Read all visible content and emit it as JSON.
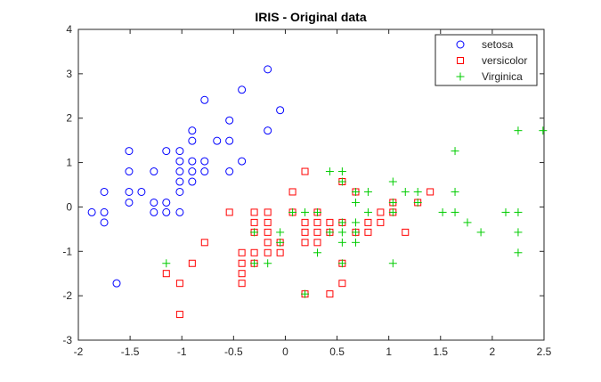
{
  "chart_data": {
    "type": "scatter",
    "title": "IRIS - Original data",
    "xlabel": "",
    "ylabel": "",
    "xlim": [
      -2,
      2.5
    ],
    "ylim": [
      -3,
      4
    ],
    "xticks": [
      -2,
      -1.5,
      -1,
      -0.5,
      0,
      0.5,
      1,
      1.5,
      2,
      2.5
    ],
    "xtick_labels": [
      "-2",
      "-1.5",
      "-1",
      "-0.5",
      "0",
      "0.5",
      "1",
      "1.5",
      "2",
      "2.5"
    ],
    "yticks": [
      -3,
      -2,
      -1,
      0,
      1,
      2,
      3,
      4
    ],
    "ytick_labels": [
      "-3",
      "-2",
      "-1",
      "0",
      "1",
      "2",
      "3",
      "4"
    ],
    "grid": false,
    "legend_position": "top-right",
    "series": [
      {
        "name": "setosa",
        "marker": "circle",
        "color": "#0000ff",
        "points": [
          [
            -1.87,
            -0.12
          ],
          [
            -1.75,
            0.34
          ],
          [
            -1.75,
            -0.12
          ],
          [
            -1.75,
            -0.35
          ],
          [
            -1.63,
            -1.72
          ],
          [
            -1.51,
            1.26
          ],
          [
            -1.51,
            0.8
          ],
          [
            -1.51,
            0.34
          ],
          [
            -1.51,
            0.1
          ],
          [
            -1.39,
            0.34
          ],
          [
            -1.27,
            0.8
          ],
          [
            -1.27,
            0.1
          ],
          [
            -1.27,
            -0.12
          ],
          [
            -1.15,
            1.26
          ],
          [
            -1.15,
            0.1
          ],
          [
            -1.15,
            -0.12
          ],
          [
            -1.02,
            1.26
          ],
          [
            -1.02,
            1.03
          ],
          [
            -1.02,
            0.8
          ],
          [
            -1.02,
            0.57
          ],
          [
            -1.02,
            0.34
          ],
          [
            -1.02,
            -0.12
          ],
          [
            -0.9,
            1.72
          ],
          [
            -0.9,
            1.49
          ],
          [
            -0.9,
            1.03
          ],
          [
            -0.9,
            0.8
          ],
          [
            -0.9,
            0.57
          ],
          [
            -0.78,
            2.41
          ],
          [
            -0.78,
            1.03
          ],
          [
            -0.78,
            0.8
          ],
          [
            -0.66,
            1.49
          ],
          [
            -0.54,
            1.95
          ],
          [
            -0.54,
            1.49
          ],
          [
            -0.54,
            0.8
          ],
          [
            -0.42,
            2.64
          ],
          [
            -0.42,
            1.03
          ],
          [
            -0.17,
            3.1
          ],
          [
            -0.17,
            1.72
          ],
          [
            -0.05,
            2.18
          ]
        ]
      },
      {
        "name": "versicolor",
        "marker": "square",
        "color": "#ff0000",
        "points": [
          [
            -1.15,
            -1.5
          ],
          [
            -1.02,
            -1.72
          ],
          [
            -1.02,
            -2.42
          ],
          [
            -0.9,
            -1.27
          ],
          [
            -0.78,
            -0.8
          ],
          [
            -0.54,
            -0.12
          ],
          [
            -0.42,
            -1.03
          ],
          [
            -0.42,
            -1.27
          ],
          [
            -0.42,
            -1.5
          ],
          [
            -0.42,
            -1.72
          ],
          [
            -0.3,
            -0.12
          ],
          [
            -0.3,
            -0.35
          ],
          [
            -0.3,
            -0.57
          ],
          [
            -0.3,
            -1.03
          ],
          [
            -0.3,
            -1.27
          ],
          [
            -0.17,
            -0.12
          ],
          [
            -0.17,
            -0.35
          ],
          [
            -0.17,
            -0.57
          ],
          [
            -0.17,
            -0.8
          ],
          [
            -0.17,
            -1.03
          ],
          [
            -0.05,
            -0.8
          ],
          [
            -0.05,
            -1.03
          ],
          [
            0.07,
            0.34
          ],
          [
            0.07,
            -0.12
          ],
          [
            0.19,
            0.8
          ],
          [
            0.19,
            -0.35
          ],
          [
            0.19,
            -0.57
          ],
          [
            0.19,
            -0.8
          ],
          [
            0.19,
            -1.96
          ],
          [
            0.31,
            -0.12
          ],
          [
            0.31,
            -0.35
          ],
          [
            0.31,
            -0.57
          ],
          [
            0.31,
            -0.8
          ],
          [
            0.43,
            -0.35
          ],
          [
            0.43,
            -0.57
          ],
          [
            0.43,
            -1.96
          ],
          [
            0.55,
            0.57
          ],
          [
            0.55,
            -0.35
          ],
          [
            0.55,
            -1.27
          ],
          [
            0.55,
            -1.72
          ],
          [
            0.68,
            0.34
          ],
          [
            0.68,
            -0.57
          ],
          [
            0.8,
            -0.35
          ],
          [
            0.8,
            -0.57
          ],
          [
            0.92,
            -0.12
          ],
          [
            0.92,
            -0.35
          ],
          [
            1.04,
            0.1
          ],
          [
            1.04,
            -0.12
          ],
          [
            1.16,
            -0.57
          ],
          [
            1.28,
            0.1
          ],
          [
            1.4,
            0.34
          ]
        ]
      },
      {
        "name": "Virginica",
        "marker": "plus",
        "color": "#00cc00",
        "points": [
          [
            -1.15,
            -1.27
          ],
          [
            -0.3,
            -0.57
          ],
          [
            -0.3,
            -1.27
          ],
          [
            -0.17,
            -1.27
          ],
          [
            -0.05,
            -0.57
          ],
          [
            -0.05,
            -0.8
          ],
          [
            0.07,
            -0.12
          ],
          [
            0.19,
            -0.12
          ],
          [
            0.19,
            -1.96
          ],
          [
            0.31,
            -0.12
          ],
          [
            0.31,
            -1.03
          ],
          [
            0.43,
            0.8
          ],
          [
            0.43,
            -0.57
          ],
          [
            0.55,
            0.8
          ],
          [
            0.55,
            0.57
          ],
          [
            0.55,
            -0.35
          ],
          [
            0.55,
            -0.57
          ],
          [
            0.55,
            -0.8
          ],
          [
            0.55,
            -1.27
          ],
          [
            0.68,
            0.34
          ],
          [
            0.68,
            0.1
          ],
          [
            0.68,
            -0.35
          ],
          [
            0.68,
            -0.57
          ],
          [
            0.68,
            -0.8
          ],
          [
            0.8,
            0.34
          ],
          [
            0.8,
            -0.12
          ],
          [
            1.04,
            0.57
          ],
          [
            1.04,
            0.1
          ],
          [
            1.04,
            -0.12
          ],
          [
            1.04,
            -1.27
          ],
          [
            1.16,
            0.34
          ],
          [
            1.28,
            0.34
          ],
          [
            1.28,
            0.1
          ],
          [
            1.52,
            -0.12
          ],
          [
            1.64,
            1.26
          ],
          [
            1.64,
            0.34
          ],
          [
            1.64,
            -0.12
          ],
          [
            1.76,
            -0.35
          ],
          [
            1.89,
            -0.57
          ],
          [
            2.13,
            -0.12
          ],
          [
            2.25,
            1.72
          ],
          [
            2.25,
            -0.12
          ],
          [
            2.25,
            -0.57
          ],
          [
            2.25,
            -1.03
          ],
          [
            2.49,
            1.72
          ]
        ]
      }
    ]
  }
}
